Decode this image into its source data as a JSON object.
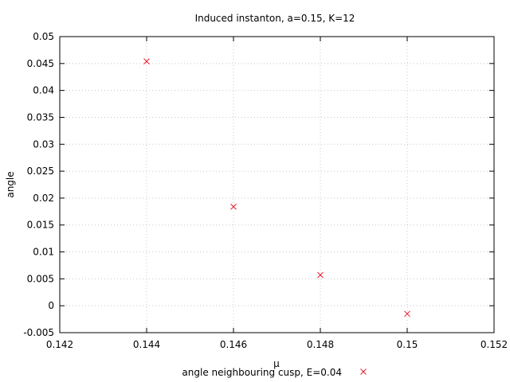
{
  "chart_data": {
    "type": "scatter",
    "title": "Induced instanton, a=0.15, K=12",
    "xlabel": "μ",
    "ylabel": "angle",
    "xlim": [
      0.142,
      0.152
    ],
    "ylim": [
      -0.005,
      0.05
    ],
    "xticks": [
      "0.142",
      "0.144",
      "0.146",
      "0.148",
      "0.15",
      "0.152"
    ],
    "yticks": [
      "-0.005",
      "0",
      "0.005",
      "0.01",
      "0.015",
      "0.02",
      "0.025",
      "0.03",
      "0.035",
      "0.04",
      "0.045",
      "0.05"
    ],
    "grid": true,
    "legend_position": "bottom-center",
    "series": [
      {
        "name": "angle neighbouring cusp, E=0.04",
        "color": "#e8192c",
        "marker": "x",
        "points": [
          {
            "x": 0.144,
            "y": 0.0454
          },
          {
            "x": 0.146,
            "y": 0.0184
          },
          {
            "x": 0.148,
            "y": 0.0057
          },
          {
            "x": 0.15,
            "y": -0.0015
          }
        ]
      }
    ]
  }
}
